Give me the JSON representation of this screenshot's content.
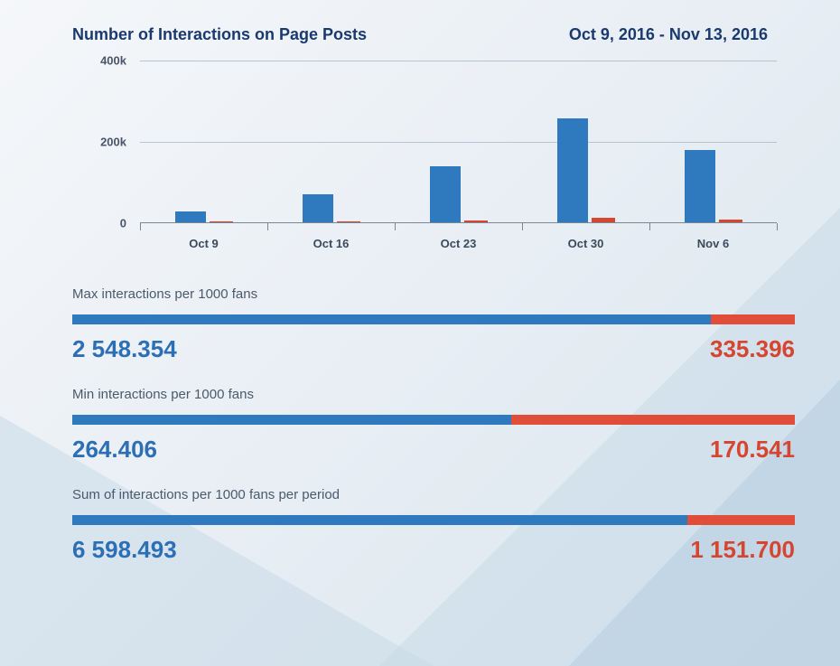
{
  "header": {
    "title": "Number of Interactions on Page Posts",
    "date_range": "Oct 9, 2016 - Nov 13, 2016"
  },
  "chart": {
    "type": "bar",
    "ylim": [
      0,
      400000
    ],
    "ytick_step": 200000,
    "yticks": [
      {
        "value": 0,
        "label": "0"
      },
      {
        "value": 200000,
        "label": "200k"
      },
      {
        "value": 400000,
        "label": "400k"
      }
    ],
    "categories": [
      "Oct 9",
      "Oct 16",
      "Oct 23",
      "Oct 30",
      "Nov 6"
    ],
    "series": [
      {
        "name": "primary",
        "color": "#2f7abf",
        "values": [
          28000,
          72000,
          140000,
          258000,
          180000
        ]
      },
      {
        "name": "secondary",
        "color": "#d64530",
        "values": [
          4000,
          5000,
          6000,
          14000,
          8000
        ]
      }
    ],
    "bar_width_primary": 34,
    "bar_width_secondary": 26,
    "grid_color": "#b8c4d0",
    "axis_color": "#7a8896",
    "label_color": "#3a4a5c",
    "label_fontsize": 13
  },
  "metrics": [
    {
      "title": "Max interactions per 1000 fans",
      "left_value": "2 548.354",
      "right_value": "335.396",
      "left_pct": 88.4,
      "right_pct": 11.6,
      "left_color": "#2f7abf",
      "right_color": "#e04e3a"
    },
    {
      "title": "Min interactions per 1000 fans",
      "left_value": "264.406",
      "right_value": "170.541",
      "left_pct": 60.8,
      "right_pct": 39.2,
      "left_color": "#2f7abf",
      "right_color": "#e04e3a"
    },
    {
      "title": "Sum of interactions per 1000 fans per period",
      "left_value": "6 598.493",
      "right_value": "1 151.700",
      "left_pct": 85.1,
      "right_pct": 14.9,
      "left_color": "#2f7abf",
      "right_color": "#e04e3a"
    }
  ],
  "colors": {
    "primary": "#2f7abf",
    "secondary": "#e04e3a",
    "title_text": "#1a3a6e",
    "metric_title_text": "#4a5a6a",
    "value_left_text": "#2c6fb5",
    "value_right_text": "#d64530",
    "bg_gradient_start": "#f5f7fa",
    "bg_gradient_end": "#d8e4ee"
  }
}
